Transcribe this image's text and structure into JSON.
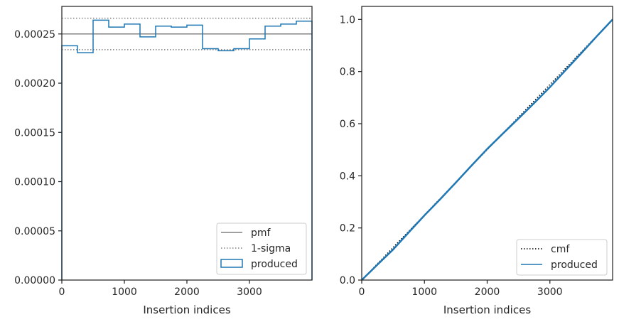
{
  "chart_data": [
    {
      "type": "step-histogram",
      "xlabel": "Insertion indices",
      "ylabel": "",
      "xlim": [
        0,
        4000
      ],
      "ylim": [
        0,
        0.000278
      ],
      "xticks": [
        0,
        1000,
        2000,
        3000
      ],
      "xtick_labels": [
        "0",
        "1000",
        "2000",
        "3000"
      ],
      "yticks": [
        0,
        5e-05,
        0.0001,
        0.00015,
        0.0002,
        0.00025
      ],
      "ytick_labels": [
        "0.00000",
        "0.00005",
        "0.00010",
        "0.00015",
        "0.00020",
        "0.00025"
      ],
      "legend_location": "lower right",
      "grid": false,
      "series": [
        {
          "name": "pmf",
          "kind": "hline",
          "y": 0.00025,
          "color": "#808080",
          "linestyle": "solid"
        },
        {
          "name": "1-sigma",
          "kind": "hlines",
          "y": [
            0.000266,
            0.000234
          ],
          "color": "#808080",
          "linestyle": "dotted"
        },
        {
          "name": "produced",
          "kind": "step",
          "color": "#1f77b4",
          "bin_edges": [
            0,
            250,
            500,
            750,
            1000,
            1250,
            1500,
            1750,
            2000,
            2250,
            2500,
            2750,
            3000,
            3250,
            3500,
            3750,
            4000
          ],
          "values": [
            0.000238,
            0.000231,
            0.000264,
            0.000257,
            0.00026,
            0.000247,
            0.000258,
            0.000257,
            0.000259,
            0.000235,
            0.000233,
            0.000235,
            0.000245,
            0.000258,
            0.00026,
            0.000263
          ]
        }
      ]
    },
    {
      "type": "line",
      "xlabel": "Insertion indices",
      "ylabel": "",
      "xlim": [
        0,
        4000
      ],
      "ylim": [
        0,
        1.05
      ],
      "xticks": [
        0,
        1000,
        2000,
        3000
      ],
      "xtick_labels": [
        "0",
        "1000",
        "2000",
        "3000"
      ],
      "yticks": [
        0,
        0.2,
        0.4,
        0.6,
        0.8,
        1.0
      ],
      "ytick_labels": [
        "0.0",
        "0.2",
        "0.4",
        "0.6",
        "0.8",
        "1.0"
      ],
      "legend_location": "lower right",
      "grid": false,
      "series": [
        {
          "name": "cmf",
          "kind": "line",
          "color": "#000000",
          "linestyle": "dotted",
          "x": [
            0,
            4000
          ],
          "y": [
            0,
            1.0
          ]
        },
        {
          "name": "produced",
          "kind": "line",
          "color": "#1f77b4",
          "linestyle": "solid",
          "x": [
            0,
            250,
            500,
            750,
            1000,
            1250,
            1500,
            1750,
            2000,
            2250,
            2500,
            2750,
            3000,
            3250,
            3500,
            3750,
            4000
          ],
          "y": [
            0,
            0.059,
            0.117,
            0.183,
            0.248,
            0.31,
            0.374,
            0.439,
            0.503,
            0.562,
            0.62,
            0.679,
            0.74,
            0.805,
            0.87,
            0.936,
            1.0
          ]
        }
      ]
    }
  ]
}
